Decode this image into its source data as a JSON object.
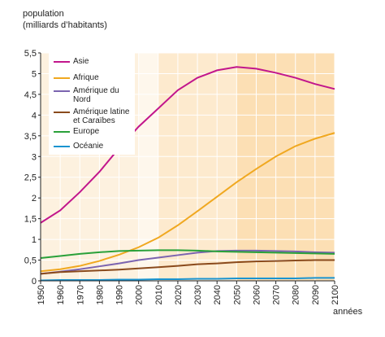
{
  "chart_data": {
    "type": "line",
    "ylabel": [
      "population",
      "(milliards d’habitants)"
    ],
    "xlabel": "années",
    "x": [
      1950,
      1960,
      1970,
      1980,
      1990,
      2000,
      2010,
      2020,
      2030,
      2040,
      2050,
      2060,
      2070,
      2080,
      2090,
      2100
    ],
    "xlim": [
      1950,
      2100
    ],
    "xticks": [
      1950,
      1960,
      1970,
      1980,
      1990,
      2000,
      2010,
      2020,
      2030,
      2040,
      2050,
      2060,
      2070,
      2080,
      2090,
      2100
    ],
    "ylim": [
      0,
      5.5
    ],
    "yticks": [
      0,
      {
        "value": 0.5,
        "label": "0,5"
      },
      1,
      {
        "value": 1.5,
        "label": "1,5"
      },
      2,
      {
        "value": 2.5,
        "label": "2,5"
      },
      3,
      {
        "value": 3.5,
        "label": "3,5"
      },
      4,
      {
        "value": 4.5,
        "label": "4,5"
      },
      5,
      {
        "value": 5.5,
        "label": "5,5"
      }
    ],
    "grid": true,
    "legend": "upper left",
    "series": [
      {
        "name": "Asie",
        "color": "#c2168c",
        "values": [
          1.4,
          1.7,
          2.14,
          2.63,
          3.2,
          3.72,
          4.16,
          4.6,
          4.9,
          5.08,
          5.16,
          5.12,
          5.02,
          4.9,
          4.75,
          4.63
        ]
      },
      {
        "name": "Afrique",
        "color": "#f0a820",
        "values": [
          0.23,
          0.28,
          0.36,
          0.48,
          0.63,
          0.81,
          1.04,
          1.34,
          1.68,
          2.03,
          2.38,
          2.7,
          3.0,
          3.25,
          3.43,
          3.57
        ]
      },
      {
        "name": "Amérique du Nord",
        "color": "#7b64b0",
        "values": [
          0.17,
          0.22,
          0.28,
          0.35,
          0.42,
          0.5,
          0.56,
          0.62,
          0.68,
          0.72,
          0.73,
          0.73,
          0.72,
          0.71,
          0.69,
          0.68
        ]
      },
      {
        "name": "Amérique latine et Caraïbes",
        "color": "#8a4a1c",
        "values": [
          0.17,
          0.21,
          0.23,
          0.25,
          0.27,
          0.3,
          0.33,
          0.36,
          0.4,
          0.42,
          0.45,
          0.47,
          0.48,
          0.49,
          0.5,
          0.5
        ]
      },
      {
        "name": "Europe",
        "color": "#2aa13a",
        "values": [
          0.55,
          0.6,
          0.65,
          0.69,
          0.72,
          0.73,
          0.74,
          0.74,
          0.73,
          0.71,
          0.7,
          0.69,
          0.68,
          0.67,
          0.66,
          0.65
        ]
      },
      {
        "name": "Océanie",
        "color": "#1a94d0",
        "values": [
          0.01,
          0.02,
          0.02,
          0.02,
          0.03,
          0.03,
          0.04,
          0.04,
          0.05,
          0.05,
          0.06,
          0.06,
          0.06,
          0.06,
          0.07,
          0.07
        ]
      }
    ]
  }
}
